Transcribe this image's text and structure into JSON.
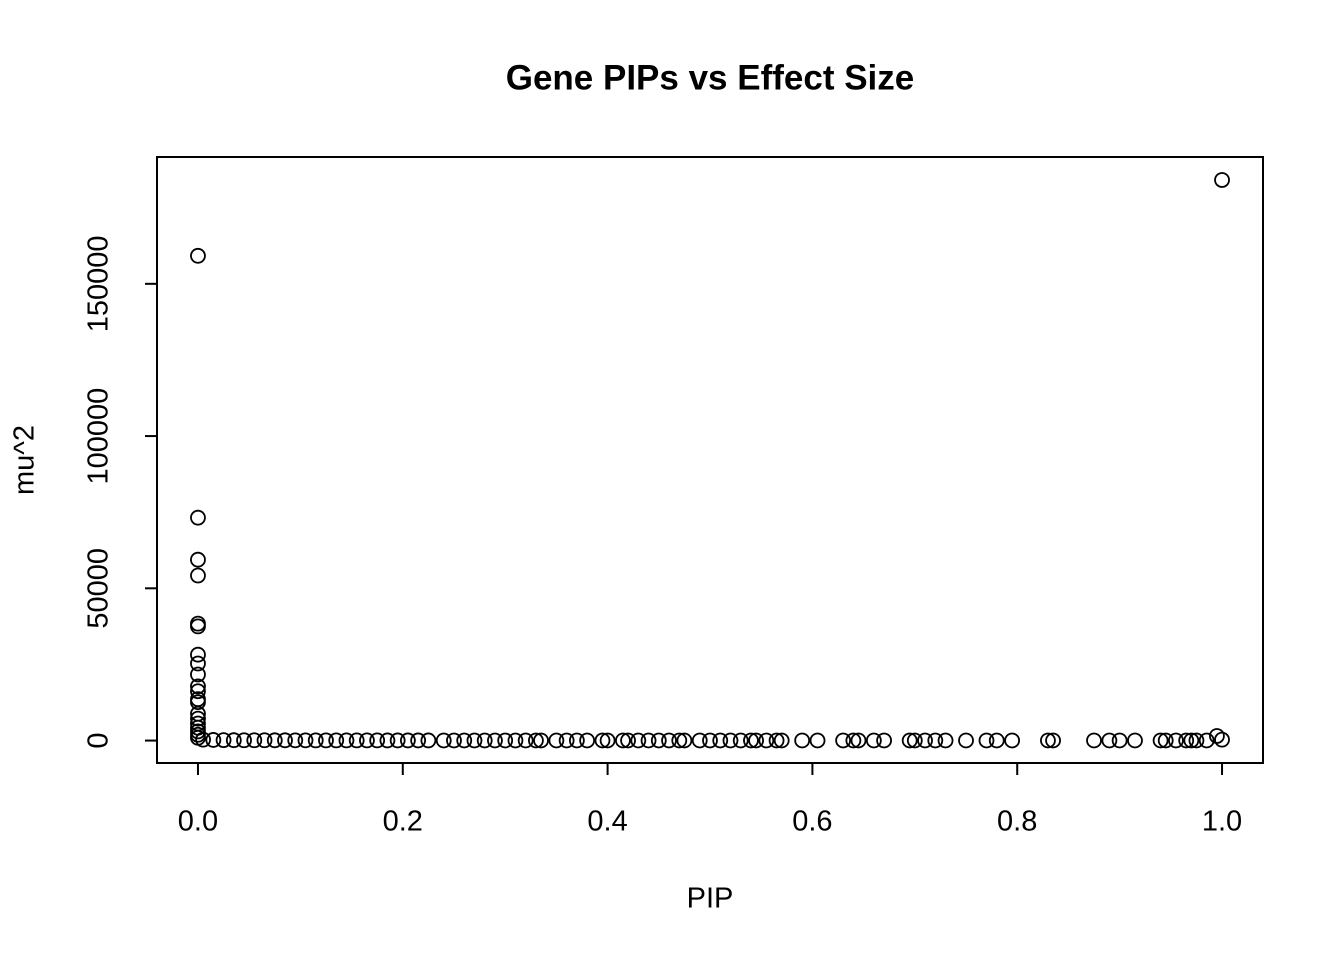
{
  "chart_data": {
    "type": "scatter",
    "title": "Gene PIPs vs Effect Size",
    "xlabel": "PIP",
    "ylabel": "mu^2",
    "xlim": [
      -0.04,
      1.04
    ],
    "ylim": [
      -7370,
      191650
    ],
    "xticks": [
      {
        "value": 0,
        "label": "0.0"
      },
      0.2,
      0.4,
      0.6,
      0.8,
      {
        "value": 1,
        "label": "1.0"
      }
    ],
    "yticks": [
      0,
      50000,
      100000,
      150000
    ],
    "color": "#000000",
    "x": [
      0,
      0,
      0,
      0,
      0,
      0,
      0,
      0,
      0,
      0,
      0,
      0,
      0,
      0,
      0,
      0,
      0,
      0,
      0,
      0,
      1.0,
      0.995,
      0.005,
      0.015,
      0.025,
      0.035,
      0.045,
      0.055,
      0.065,
      0.075,
      0.085,
      0.095,
      0.105,
      0.115,
      0.125,
      0.135,
      0.145,
      0.155,
      0.165,
      0.175,
      0.185,
      0.195,
      0.205,
      0.215,
      0.225,
      0.24,
      0.25,
      0.26,
      0.27,
      0.28,
      0.29,
      0.3,
      0.31,
      0.32,
      0.33,
      0.335,
      0.35,
      0.36,
      0.37,
      0.38,
      0.395,
      0.4,
      0.415,
      0.42,
      0.43,
      0.44,
      0.45,
      0.46,
      0.47,
      0.475,
      0.49,
      0.5,
      0.51,
      0.52,
      0.53,
      0.54,
      0.545,
      0.555,
      0.565,
      0.57,
      0.59,
      0.605,
      0.63,
      0.64,
      0.645,
      0.66,
      0.67,
      0.695,
      0.7,
      0.71,
      0.72,
      0.73,
      0.75,
      0.77,
      0.78,
      0.795,
      0.83,
      0.835,
      0.875,
      0.89,
      0.9,
      0.915,
      0.94,
      0.945,
      0.955,
      0.965,
      0.97,
      0.975,
      0.985,
      1.0
    ],
    "values": [
      159200,
      73200,
      59400,
      54200,
      38400,
      37500,
      28200,
      25300,
      21700,
      17800,
      16200,
      13600,
      12600,
      8800,
      7200,
      5600,
      4200,
      3000,
      1900,
      900,
      184100,
      1500,
      300,
      200,
      150,
      120,
      100,
      100,
      90,
      80,
      80,
      70,
      70,
      60,
      60,
      60,
      50,
      50,
      50,
      50,
      40,
      40,
      40,
      40,
      40,
      30,
      30,
      30,
      30,
      30,
      30,
      30,
      30,
      30,
      30,
      30,
      30,
      30,
      30,
      30,
      30,
      30,
      30,
      30,
      30,
      30,
      30,
      30,
      30,
      30,
      30,
      30,
      30,
      30,
      30,
      30,
      30,
      30,
      30,
      30,
      30,
      30,
      30,
      30,
      30,
      30,
      30,
      30,
      30,
      30,
      30,
      30,
      30,
      30,
      30,
      30,
      30,
      30,
      30,
      30,
      30,
      30,
      30,
      30,
      30,
      30,
      30,
      30,
      30,
      300
    ]
  }
}
